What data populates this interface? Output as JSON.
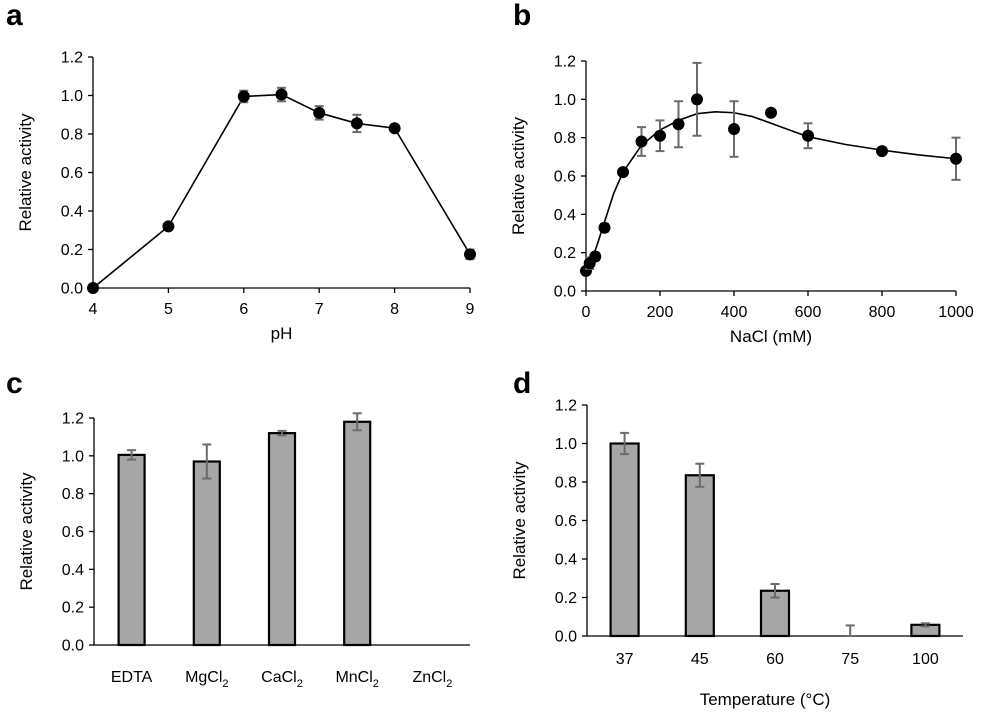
{
  "chart_data": [
    {
      "panel": "a",
      "type": "line",
      "xlabel": "pH",
      "ylabel": "Relative activity",
      "xlim": [
        4,
        9
      ],
      "ylim": [
        0,
        1.2
      ],
      "xticks": [
        4,
        5,
        6,
        7,
        8,
        9
      ],
      "yticks": [
        "0.0",
        "0.2",
        "0.4",
        "0.6",
        "0.8",
        "1.0",
        "1.2"
      ],
      "x": [
        4,
        5,
        6,
        6.5,
        7,
        7.5,
        8,
        9
      ],
      "values": [
        0.0,
        0.32,
        0.995,
        1.005,
        0.91,
        0.855,
        0.83,
        0.175
      ],
      "errors": [
        0,
        0,
        0.03,
        0.035,
        0.035,
        0.045,
        0,
        0.025
      ]
    },
    {
      "panel": "b",
      "type": "scatter",
      "xlabel": "NaCl (mM)",
      "ylabel": "Relative activity",
      "xlim": [
        0,
        1000
      ],
      "ylim": [
        0,
        1.2
      ],
      "xticks": [
        0,
        200,
        400,
        600,
        800,
        1000
      ],
      "yticks": [
        "0.0",
        "0.2",
        "0.4",
        "0.6",
        "0.8",
        "1.0",
        "1.2"
      ],
      "x": [
        0,
        10,
        25,
        50,
        100,
        150,
        200,
        250,
        300,
        400,
        500,
        600,
        800,
        1000
      ],
      "values": [
        0.105,
        0.145,
        0.18,
        0.33,
        0.62,
        0.78,
        0.81,
        0.87,
        1.0,
        0.845,
        0.93,
        0.81,
        0.73,
        0.69
      ],
      "errors": [
        0,
        0.03,
        0.02,
        0.02,
        0,
        0.075,
        0.08,
        0.12,
        0.19,
        0.145,
        0,
        0.065,
        0,
        0.11
      ],
      "fit_curve": {
        "x": [
          0,
          15,
          30,
          50,
          75,
          100,
          150,
          200,
          250,
          300,
          350,
          400,
          450,
          500,
          550,
          600,
          700,
          800,
          900,
          1000
        ],
        "values": [
          0.1,
          0.16,
          0.24,
          0.36,
          0.51,
          0.62,
          0.76,
          0.84,
          0.89,
          0.925,
          0.935,
          0.93,
          0.91,
          0.875,
          0.84,
          0.805,
          0.765,
          0.735,
          0.71,
          0.69
        ]
      }
    },
    {
      "panel": "c",
      "type": "bar",
      "ylabel": "Relative activity",
      "ylim": [
        0,
        1.2
      ],
      "yticks": [
        "0.0",
        "0.2",
        "0.4",
        "0.6",
        "0.8",
        "1.0",
        "1.2"
      ],
      "categories": [
        {
          "base": "EDTA",
          "sub": ""
        },
        {
          "base": "MgCl",
          "sub": "2"
        },
        {
          "base": "CaCl",
          "sub": "2"
        },
        {
          "base": "MnCl",
          "sub": "2"
        },
        {
          "base": "ZnCl",
          "sub": "2"
        }
      ],
      "values": [
        1.005,
        0.97,
        1.12,
        1.18,
        0.0
      ],
      "errors": [
        0.025,
        0.09,
        0.012,
        0.045,
        0
      ]
    },
    {
      "panel": "d",
      "type": "bar",
      "xlabel": "Temperature (°C)",
      "ylabel": "Relative activity",
      "ylim": [
        0,
        1.2
      ],
      "yticks": [
        "0.0",
        "0.2",
        "0.4",
        "0.6",
        "0.8",
        "1.0",
        "1.2"
      ],
      "categories": [
        "37",
        "45",
        "60",
        "75",
        "100"
      ],
      "values": [
        1.0,
        0.835,
        0.235,
        0.0,
        0.058
      ],
      "errors": [
        0.055,
        0.06,
        0.035,
        0.055,
        0.008
      ]
    }
  ]
}
